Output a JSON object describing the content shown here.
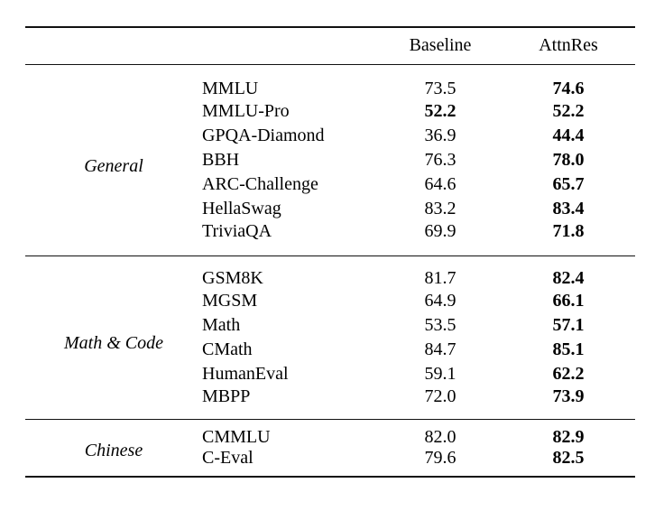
{
  "table": {
    "headers": {
      "baseline": "Baseline",
      "attnres": "AttnRes"
    },
    "sections": [
      {
        "category": "General",
        "rows": [
          {
            "name": "MMLU",
            "baseline": "73.5",
            "attnres": "74.6",
            "baseline_bold": false,
            "attnres_bold": true
          },
          {
            "name": "MMLU-Pro",
            "baseline": "52.2",
            "attnres": "52.2",
            "baseline_bold": true,
            "attnres_bold": true
          },
          {
            "name": "GPQA-Diamond",
            "baseline": "36.9",
            "attnres": "44.4",
            "baseline_bold": false,
            "attnres_bold": true
          },
          {
            "name": "BBH",
            "baseline": "76.3",
            "attnres": "78.0",
            "baseline_bold": false,
            "attnres_bold": true
          },
          {
            "name": "ARC-Challenge",
            "baseline": "64.6",
            "attnres": "65.7",
            "baseline_bold": false,
            "attnres_bold": true
          },
          {
            "name": "HellaSwag",
            "baseline": "83.2",
            "attnres": "83.4",
            "baseline_bold": false,
            "attnres_bold": true
          },
          {
            "name": "TriviaQA",
            "baseline": "69.9",
            "attnres": "71.8",
            "baseline_bold": false,
            "attnres_bold": true
          }
        ]
      },
      {
        "category": "Math & Code",
        "rows": [
          {
            "name": "GSM8K",
            "baseline": "81.7",
            "attnres": "82.4",
            "baseline_bold": false,
            "attnres_bold": true
          },
          {
            "name": "MGSM",
            "baseline": "64.9",
            "attnres": "66.1",
            "baseline_bold": false,
            "attnres_bold": true
          },
          {
            "name": "Math",
            "baseline": "53.5",
            "attnres": "57.1",
            "baseline_bold": false,
            "attnres_bold": true
          },
          {
            "name": "CMath",
            "baseline": "84.7",
            "attnres": "85.1",
            "baseline_bold": false,
            "attnres_bold": true
          },
          {
            "name": "HumanEval",
            "baseline": "59.1",
            "attnres": "62.2",
            "baseline_bold": false,
            "attnres_bold": true
          },
          {
            "name": "MBPP",
            "baseline": "72.0",
            "attnres": "73.9",
            "baseline_bold": false,
            "attnres_bold": true
          }
        ]
      },
      {
        "category": "Chinese",
        "rows": [
          {
            "name": "CMMLU",
            "baseline": "82.0",
            "attnres": "82.9",
            "baseline_bold": false,
            "attnres_bold": true
          },
          {
            "name": "C-Eval",
            "baseline": "79.6",
            "attnres": "82.5",
            "baseline_bold": false,
            "attnres_bold": true
          }
        ]
      }
    ]
  }
}
